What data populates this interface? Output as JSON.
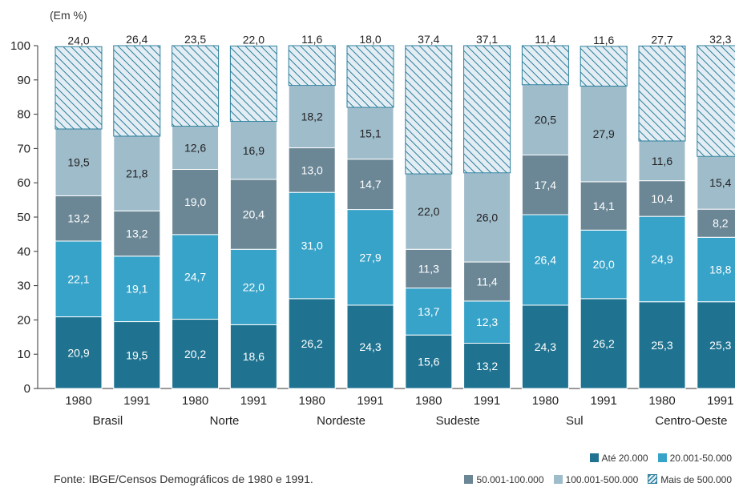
{
  "colors": {
    "ate20": "#1f7390",
    "c20_50": "#38a3c9",
    "c50_100": "#6b8796",
    "c100_500": "#9fbccb",
    "mais500_fill": "#e3edf3",
    "mais500_hatch": "#2a7f9c"
  },
  "chart_data": {
    "type": "bar",
    "stacked": true,
    "unit_label": "(Em %)",
    "ylim": [
      0,
      100
    ],
    "yticks": [
      0,
      10,
      20,
      30,
      40,
      50,
      60,
      70,
      80,
      90,
      100
    ],
    "grid": false,
    "legend_position": "bottom-right",
    "bars": [
      {
        "year": "1980",
        "region": "Brasil"
      },
      {
        "year": "1991",
        "region": "Brasil"
      },
      {
        "year": "1980",
        "region": "Norte"
      },
      {
        "year": "1991",
        "region": "Norte"
      },
      {
        "year": "1980",
        "region": "Nordeste"
      },
      {
        "year": "1991",
        "region": "Nordeste"
      },
      {
        "year": "1980",
        "region": "Sudeste"
      },
      {
        "year": "1991",
        "region": "Sudeste"
      },
      {
        "year": "1980",
        "region": "Sul"
      },
      {
        "year": "1991",
        "region": "Sul"
      },
      {
        "year": "1980",
        "region": "Centro-Oeste"
      },
      {
        "year": "1991",
        "region": "Centro-Oeste"
      }
    ],
    "regions": [
      "Brasil",
      "Norte",
      "Nordeste",
      "Sudeste",
      "Sul",
      "Centro-Oeste"
    ],
    "series": [
      {
        "name": "Até 20.000",
        "color_key": "ate20",
        "values": [
          20.9,
          19.5,
          20.2,
          18.6,
          26.2,
          24.3,
          15.6,
          13.2,
          24.3,
          26.2,
          25.3,
          25.3
        ],
        "labels": [
          "20,9",
          "19,5",
          "20,2",
          "18,6",
          "26,2",
          "24,3",
          "15,6",
          "13,2",
          "24,3",
          "26,2",
          "25,3",
          "25,3"
        ]
      },
      {
        "name": "20.001-50.000",
        "color_key": "c20_50",
        "values": [
          22.1,
          19.1,
          24.7,
          22.0,
          31.0,
          27.9,
          13.7,
          12.3,
          26.4,
          20.0,
          24.9,
          18.8
        ],
        "labels": [
          "22,1",
          "19,1",
          "24,7",
          "22,0",
          "31,0",
          "27,9",
          "13,7",
          "12,3",
          "26,4",
          "20,0",
          "24,9",
          "18,8"
        ]
      },
      {
        "name": "50.001-100.000",
        "color_key": "c50_100",
        "values": [
          13.2,
          13.2,
          19.0,
          20.4,
          13.0,
          14.7,
          11.3,
          11.4,
          17.4,
          14.1,
          10.4,
          8.2
        ],
        "labels": [
          "13,2",
          "13,2",
          "19,0",
          "20,4",
          "13,0",
          "14,7",
          "11,3",
          "11,4",
          "17,4",
          "14,1",
          "10,4",
          "8,2"
        ]
      },
      {
        "name": "100.001-500.000",
        "color_key": "c100_500",
        "values": [
          19.5,
          21.8,
          12.6,
          16.9,
          18.2,
          15.1,
          22.0,
          26.0,
          20.5,
          27.9,
          11.6,
          15.4
        ],
        "labels": [
          "19,5",
          "21,8",
          "12,6",
          "16,9",
          "18,2",
          "15,1",
          "22,0",
          "26,0",
          "20,5",
          "27,9",
          "11,6",
          "15,4"
        ]
      },
      {
        "name": "Mais de 500.000",
        "color_key": "mais500_fill",
        "hatched": true,
        "values": [
          24.0,
          26.4,
          23.5,
          22.0,
          11.6,
          18.0,
          37.4,
          37.1,
          11.4,
          11.6,
          27.7,
          32.3
        ],
        "labels": [
          "24,0",
          "26,4",
          "23,5",
          "22,0",
          "11,6",
          "18,0",
          "37,4",
          "37,1",
          "11,4",
          "11,6",
          "27,7",
          "32,3"
        ]
      }
    ]
  },
  "legend": {
    "row1": [
      {
        "label": "Até 20.000",
        "color_key": "ate20"
      },
      {
        "label": "20.001-50.000",
        "color_key": "c20_50"
      }
    ],
    "row2": [
      {
        "label": "50.001-100.000",
        "color_key": "c50_100"
      },
      {
        "label": "100.001-500.000",
        "color_key": "c100_500"
      },
      {
        "label": "Mais de 500.000",
        "color_key": "mais500_fill",
        "hatched": true
      }
    ]
  },
  "source_text": "Fonte: IBGE/Censos Demográficos de 1980 e 1991."
}
